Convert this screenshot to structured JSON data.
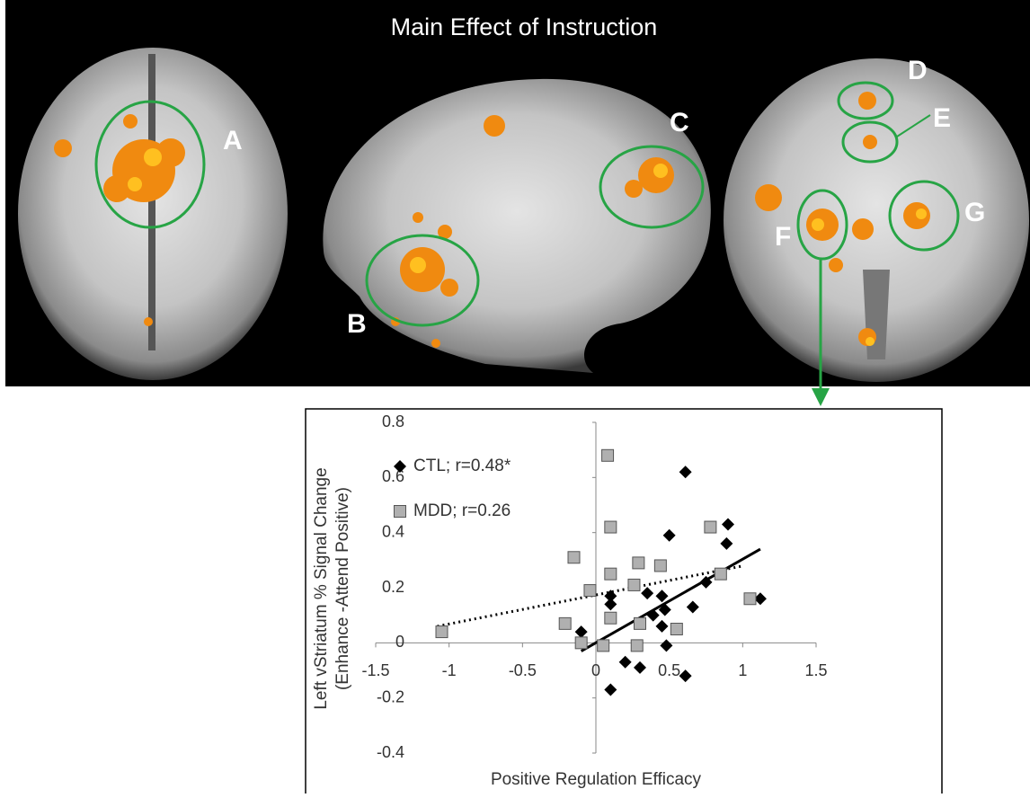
{
  "figure": {
    "title": "Main Effect of Instruction",
    "region_labels": [
      "A",
      "B",
      "C",
      "D",
      "E",
      "F",
      "G"
    ]
  },
  "chart_data": {
    "type": "scatter",
    "x_label": "Positive Regulation Efficacy",
    "y_label": [
      "Left vStriatum % Signal Change",
      "(Enhance -Attend Positive)"
    ],
    "xlim": [
      -1.5,
      1.5
    ],
    "xticks": [
      -1.5,
      -1,
      -0.5,
      0,
      0.5,
      1,
      1.5
    ],
    "ylim": [
      -0.4,
      0.8
    ],
    "yticks": [
      -0.4,
      -0.2,
      0,
      0.2,
      0.4,
      0.6,
      0.8
    ],
    "grid": false,
    "legend": "upper left",
    "series": [
      {
        "name": "CTL; r=0.48*",
        "color": "#000000",
        "marker": "diamond",
        "x": [
          0.61,
          0.9,
          0.5,
          0.89,
          0.1,
          0.1,
          0.35,
          0.45,
          0.75,
          1.12,
          0.47,
          0.66,
          0.39,
          0.45,
          -0.1,
          0.48,
          0.2,
          0.3,
          0.61,
          0.1
        ],
        "values": [
          0.62,
          0.43,
          0.39,
          0.36,
          0.17,
          0.14,
          0.18,
          0.17,
          0.22,
          0.16,
          0.12,
          0.13,
          0.1,
          0.06,
          0.04,
          -0.01,
          -0.07,
          -0.09,
          -0.12,
          -0.17
        ],
        "trendline": {
          "style": "solid",
          "x": [
            -0.1,
            1.12
          ],
          "y": [
            -0.03,
            0.34
          ]
        }
      },
      {
        "name": "MDD; r=0.26",
        "color": "#b0b0b0",
        "marker": "square",
        "x": [
          0.08,
          -0.15,
          0.1,
          0.78,
          0.29,
          0.44,
          0.1,
          0.85,
          0.26,
          -0.04,
          1.05,
          -0.21,
          0.1,
          0.3,
          0.55,
          -1.05,
          -0.1,
          0.05,
          0.28
        ],
        "values": [
          0.68,
          0.31,
          0.42,
          0.42,
          0.29,
          0.28,
          0.25,
          0.25,
          0.21,
          0.19,
          0.16,
          0.07,
          0.09,
          0.07,
          0.05,
          0.04,
          0.0,
          -0.01,
          -0.01
        ],
        "trendline": {
          "style": "dotted",
          "x": [
            -1.08,
            1.01
          ],
          "y": [
            0.06,
            0.28
          ]
        }
      }
    ]
  }
}
